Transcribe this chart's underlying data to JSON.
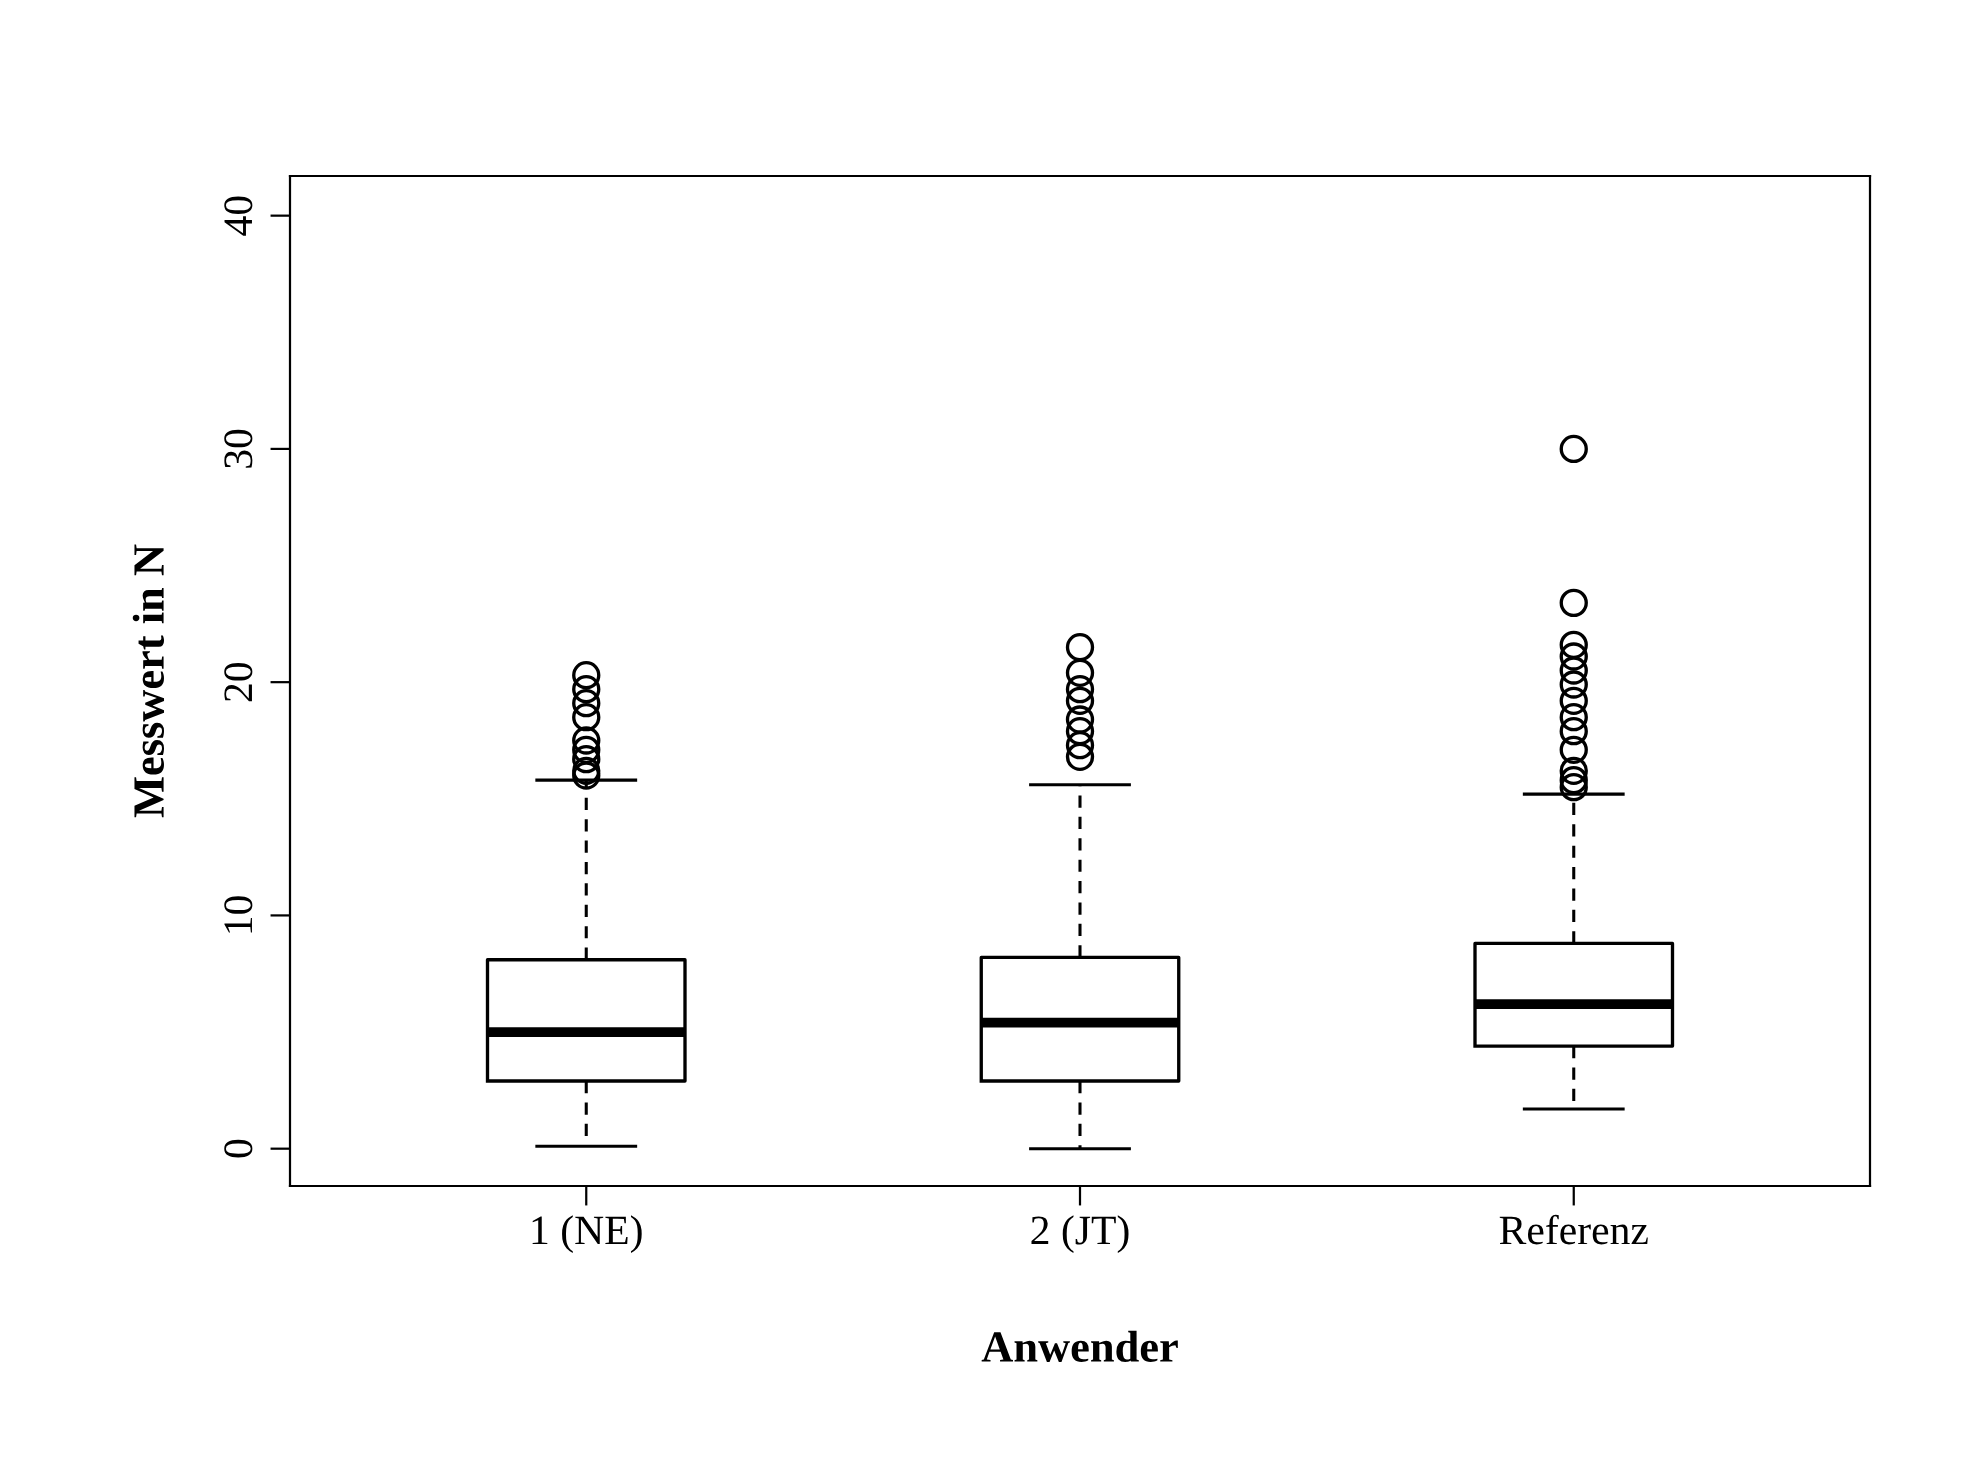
{
  "chart_data": {
    "type": "box",
    "xlabel": "Anwender",
    "ylabel": "Messwert in N",
    "categories": [
      "1 (NE)",
      "2 (JT)",
      "Referenz"
    ],
    "boxes": [
      {
        "low": 0.1,
        "q1": 2.9,
        "median": 5.0,
        "q3": 8.1,
        "high": 15.8,
        "outliers": [
          20.3,
          19.7,
          19.1,
          18.5,
          17.5,
          17.1,
          16.7,
          16.2,
          16.0
        ]
      },
      {
        "low": 0.0,
        "q1": 2.9,
        "median": 5.4,
        "q3": 8.2,
        "high": 15.6,
        "outliers": [
          21.5,
          20.4,
          19.7,
          19.2,
          18.4,
          17.9,
          17.3,
          16.8
        ]
      },
      {
        "low": 1.7,
        "q1": 4.4,
        "median": 6.2,
        "q3": 8.8,
        "high": 15.2,
        "outliers": [
          30.0,
          23.4,
          21.6,
          21.1,
          20.5,
          19.9,
          19.2,
          18.5,
          17.9,
          17.1,
          16.2,
          15.8,
          15.5
        ]
      }
    ],
    "ylim": [
      -1.6,
      41.7
    ],
    "yticks": [
      0,
      10,
      20,
      30,
      40
    ],
    "grid": false,
    "legend": false
  }
}
